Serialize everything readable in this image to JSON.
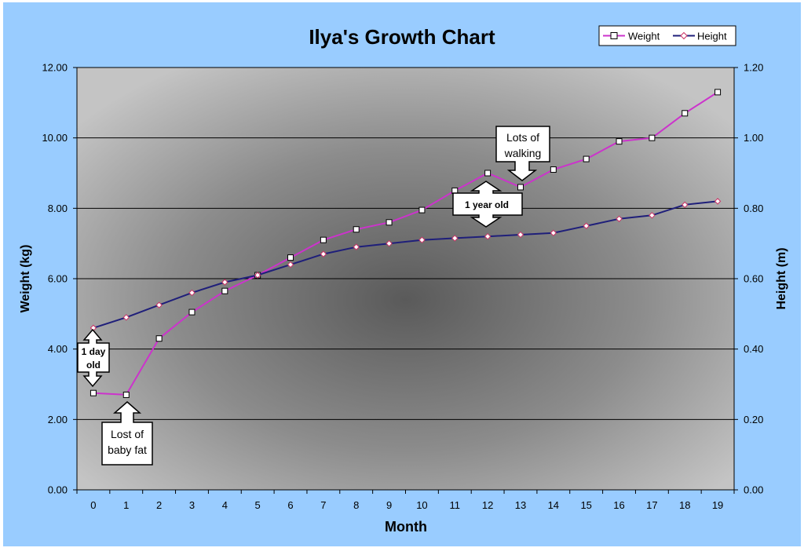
{
  "chart_data": {
    "type": "line",
    "title": "Ilya's Growth Chart",
    "xlabel": "Month",
    "ylabel_left": "Weight (kg)",
    "ylabel_right": "Height (m)",
    "categories": [
      "0",
      "1",
      "2",
      "3",
      "4",
      "5",
      "6",
      "7",
      "8",
      "9",
      "10",
      "11",
      "12",
      "13",
      "14",
      "15",
      "16",
      "17",
      "18",
      "19"
    ],
    "ylim_left": [
      0,
      12
    ],
    "ylim_right": [
      0,
      1.2
    ],
    "yticks_left": [
      "0.00",
      "2.00",
      "4.00",
      "6.00",
      "8.00",
      "10.00",
      "12.00"
    ],
    "yticks_right": [
      "0.00",
      "0.20",
      "0.40",
      "0.60",
      "0.80",
      "1.00",
      "1.20"
    ],
    "grid": true,
    "legend_position": "top-right",
    "series": [
      {
        "name": "Weight",
        "axis": "left",
        "color": "#cc33cc",
        "marker": "square",
        "values": [
          2.75,
          2.7,
          4.3,
          5.05,
          5.65,
          6.1,
          6.6,
          7.1,
          7.4,
          7.6,
          7.95,
          8.5,
          9.0,
          8.6,
          9.1,
          9.4,
          9.9,
          10.0,
          10.7,
          11.3
        ]
      },
      {
        "name": "Height",
        "axis": "right",
        "color": "#1f1f7a",
        "marker": "diamond",
        "values": [
          0.46,
          0.49,
          0.525,
          0.56,
          0.59,
          0.61,
          0.64,
          0.67,
          0.69,
          0.7,
          0.71,
          0.715,
          0.72,
          0.725,
          0.73,
          0.75,
          0.77,
          0.78,
          0.81,
          0.82
        ]
      }
    ],
    "annotations": [
      {
        "id": "one-day-old",
        "lines": [
          "1 day",
          "old"
        ],
        "bold": true
      },
      {
        "id": "lost-baby-fat",
        "lines": [
          "Lost of",
          "baby fat"
        ],
        "bold": false
      },
      {
        "id": "one-year-old",
        "lines": [
          "1 year old"
        ],
        "bold": true
      },
      {
        "id": "lots-of-walking",
        "lines": [
          "Lots of",
          "walking"
        ],
        "bold": false
      }
    ]
  }
}
